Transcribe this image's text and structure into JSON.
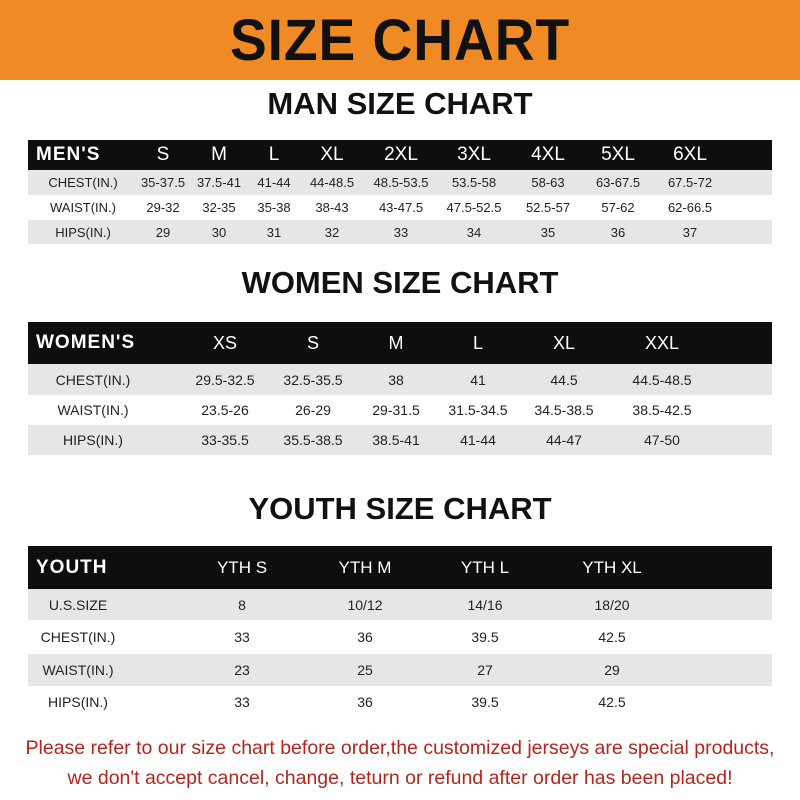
{
  "banner": {
    "title": "SIZE CHART",
    "color": "#f08a24"
  },
  "men": {
    "title": "MAN SIZE CHART",
    "header": [
      "MEN'S",
      "S",
      "M",
      "L",
      "XL",
      "2XL",
      "3XL",
      "4XL",
      "5XL",
      "6XL"
    ],
    "rows": [
      [
        "CHEST(IN.)",
        "35-37.5",
        "37.5-41",
        "41-44",
        "44-48.5",
        "48.5-53.5",
        "53.5-58",
        "58-63",
        "63-67.5",
        "67.5-72"
      ],
      [
        "WAIST(IN.)",
        "29-32",
        "32-35",
        "35-38",
        "38-43",
        "43-47.5",
        "47.5-52.5",
        "52.5-57",
        "57-62",
        "62-66.5"
      ],
      [
        "HIPS(IN.)",
        "29",
        "30",
        "31",
        "32",
        "33",
        "34",
        "35",
        "36",
        "37"
      ]
    ]
  },
  "women": {
    "title": "WOMEN SIZE CHART",
    "header": [
      "WOMEN'S",
      "XS",
      "S",
      "M",
      "L",
      "XL",
      "XXL"
    ],
    "rows": [
      [
        "CHEST(IN.)",
        "29.5-32.5",
        "32.5-35.5",
        "38",
        "41",
        "44.5",
        "44.5-48.5"
      ],
      [
        "WAIST(IN.)",
        "23.5-26",
        "26-29",
        "29-31.5",
        "31.5-34.5",
        "34.5-38.5",
        "38.5-42.5"
      ],
      [
        "HIPS(IN.)",
        "33-35.5",
        "35.5-38.5",
        "38.5-41",
        "41-44",
        "44-47",
        "47-50"
      ]
    ]
  },
  "youth": {
    "title": "YOUTH SIZE CHART",
    "header": [
      "YOUTH",
      "YTH S",
      "YTH M",
      "YTH L",
      "YTH XL"
    ],
    "rows": [
      [
        "U.S.SIZE",
        "8",
        "10/12",
        "14/16",
        "18/20"
      ],
      [
        "CHEST(IN.)",
        "33",
        "36",
        "39.5",
        "42.5"
      ],
      [
        "WAIST(IN.)",
        "23",
        "25",
        "27",
        "29"
      ],
      [
        "HIPS(IN.)",
        "33",
        "36",
        "39.5",
        "42.5"
      ]
    ]
  },
  "notice": {
    "line1": "Please refer to our size chart before order,the customized jerseys are special products,",
    "line2": "we don't accept cancel, change, teturn or refund after order has been placed!",
    "color": "#b3261e"
  }
}
